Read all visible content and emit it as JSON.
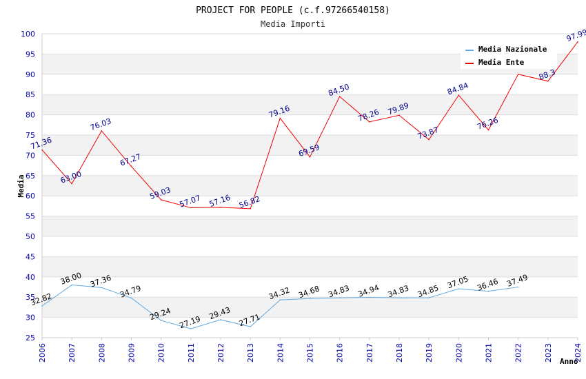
{
  "chart_data": {
    "type": "line",
    "title": "PROJECT FOR PEOPLE (c.f.97266540158)",
    "subtitle": "Media Importi",
    "xlabel": "Anno",
    "ylabel": "Media",
    "ylim": [
      25,
      100
    ],
    "ytick_step": 5,
    "grid": true,
    "legend_position": "top-right",
    "categories": [
      "2006",
      "2007",
      "2008",
      "2009",
      "2010",
      "2011",
      "2012",
      "2013",
      "2014",
      "2015",
      "2016",
      "2017",
      "2018",
      "2019",
      "2020",
      "2021",
      "2022",
      "2023",
      "2024"
    ],
    "series": [
      {
        "name": "Media Nazionale",
        "color": "#5fa8e0",
        "label_color": "#000000",
        "values": [
          32.82,
          38.0,
          37.36,
          34.79,
          29.24,
          27.19,
          29.43,
          27.71,
          34.32,
          34.68,
          34.83,
          34.94,
          34.83,
          34.85,
          37.05,
          36.46,
          37.49,
          null,
          null
        ],
        "labels": [
          "32.82",
          "38.00",
          "37.36",
          "34.79",
          "29.24",
          "27.19",
          "29.43",
          "27.71",
          "34.32",
          "34.68",
          "34.83",
          "34.94",
          "34.83",
          "34.85",
          "37.05",
          "36.46",
          "37.49",
          null,
          null
        ]
      },
      {
        "name": "Media Ente",
        "color": "#ee0000",
        "label_color": "#00008b",
        "values": [
          71.36,
          63.0,
          76.03,
          67.27,
          59.03,
          57.07,
          57.16,
          56.82,
          79.16,
          69.59,
          84.5,
          78.26,
          79.89,
          73.87,
          84.84,
          76.26,
          90.0,
          88.3,
          97.99
        ],
        "labels": [
          "71.36",
          "63.00",
          "76.03",
          "67.27",
          "59.03",
          "57.07",
          "57.16",
          "56.82",
          "79.16",
          "69.59",
          "84.50",
          "78.26",
          "79.89",
          "73.87",
          "84.84",
          "76.26",
          null,
          "88.3",
          "97.99"
        ]
      }
    ]
  }
}
